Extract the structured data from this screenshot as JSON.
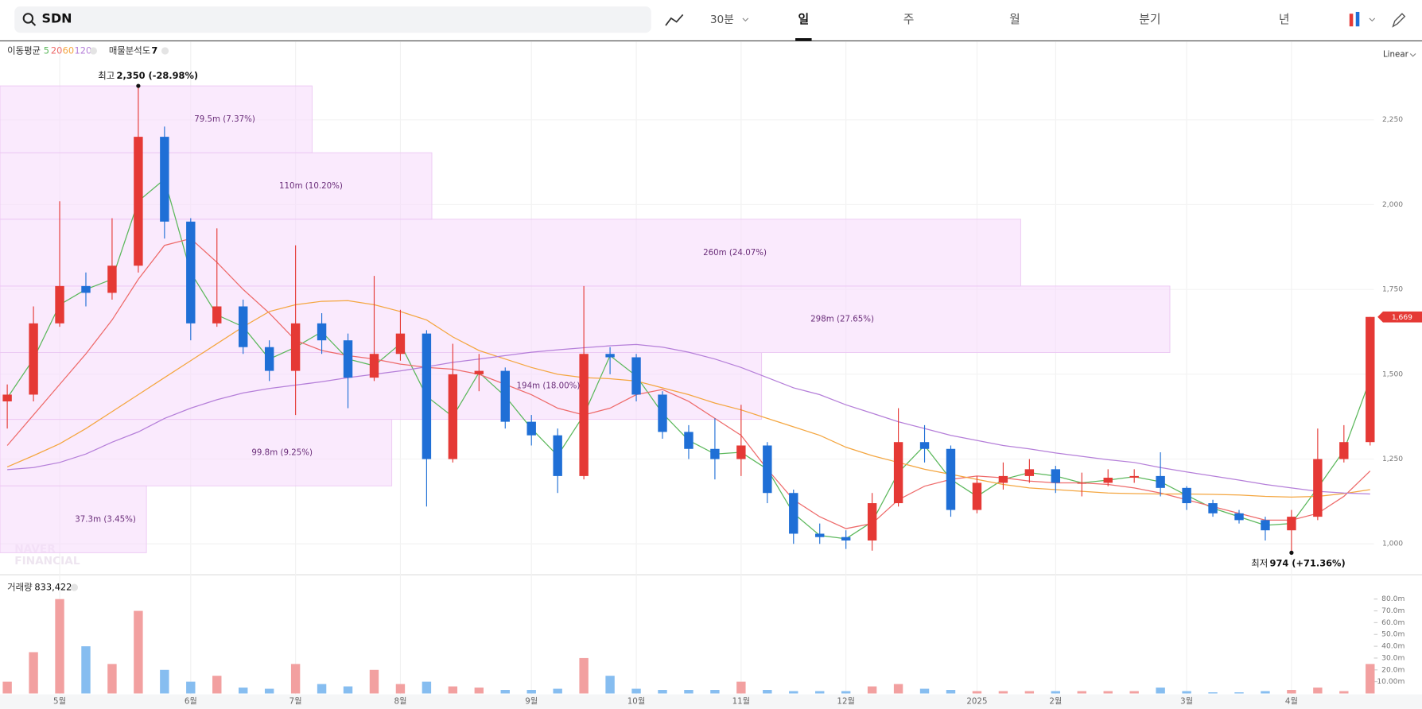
{
  "header": {
    "search": "SDN",
    "interval": "30분",
    "tabs": [
      "일",
      "주",
      "월",
      "분기",
      "년"
    ],
    "active_tab": 0,
    "scale_mode": "Linear"
  },
  "chart_data": {
    "type": "candlestick",
    "categories": [
      null,
      null,
      "5월",
      null,
      null,
      null,
      null,
      "6월",
      null,
      null,
      null,
      "7월",
      null,
      null,
      null,
      "8월",
      null,
      null,
      null,
      null,
      "9월",
      null,
      null,
      null,
      "10월",
      null,
      null,
      null,
      "11월",
      null,
      null,
      null,
      "12월",
      null,
      null,
      null,
      null,
      "2025",
      null,
      null,
      "2월",
      null,
      null,
      null,
      null,
      "3월",
      null,
      null,
      null,
      "4월",
      null,
      null,
      null
    ],
    "ohlc": [
      [
        1420,
        1470,
        1340,
        1440
      ],
      [
        1440,
        1700,
        1420,
        1650
      ],
      [
        1650,
        2010,
        1640,
        1760
      ],
      [
        1760,
        1800,
        1700,
        1740
      ],
      [
        1740,
        1960,
        1720,
        1820
      ],
      [
        1820,
        2350,
        1800,
        2200
      ],
      [
        2200,
        2230,
        1900,
        1950
      ],
      [
        1950,
        1960,
        1600,
        1650
      ],
      [
        1650,
        1930,
        1640,
        1700
      ],
      [
        1700,
        1720,
        1560,
        1580
      ],
      [
        1580,
        1600,
        1480,
        1510
      ],
      [
        1510,
        1880,
        1380,
        1650
      ],
      [
        1650,
        1680,
        1560,
        1600
      ],
      [
        1600,
        1620,
        1400,
        1490
      ],
      [
        1490,
        1790,
        1480,
        1560
      ],
      [
        1560,
        1690,
        1540,
        1620
      ],
      [
        1620,
        1630,
        1110,
        1250
      ],
      [
        1250,
        1590,
        1240,
        1500
      ],
      [
        1500,
        1560,
        1450,
        1510
      ],
      [
        1510,
        1520,
        1340,
        1360
      ],
      [
        1360,
        1380,
        1290,
        1320
      ],
      [
        1320,
        1340,
        1150,
        1200
      ],
      [
        1200,
        1760,
        1190,
        1560
      ],
      [
        1560,
        1580,
        1500,
        1550
      ],
      [
        1550,
        1560,
        1420,
        1440
      ],
      [
        1440,
        1450,
        1310,
        1330
      ],
      [
        1330,
        1350,
        1250,
        1280
      ],
      [
        1280,
        1370,
        1190,
        1250
      ],
      [
        1250,
        1410,
        1200,
        1290
      ],
      [
        1290,
        1300,
        1120,
        1150
      ],
      [
        1150,
        1160,
        1000,
        1030
      ],
      [
        1030,
        1060,
        1000,
        1020
      ],
      [
        1020,
        1040,
        985,
        1010
      ],
      [
        1010,
        1150,
        980,
        1120
      ],
      [
        1120,
        1400,
        1110,
        1300
      ],
      [
        1300,
        1350,
        1240,
        1280
      ],
      [
        1280,
        1290,
        1080,
        1100
      ],
      [
        1100,
        1200,
        1090,
        1180
      ],
      [
        1180,
        1240,
        1160,
        1200
      ],
      [
        1200,
        1250,
        1180,
        1220
      ],
      [
        1220,
        1230,
        1150,
        1180
      ],
      [
        1180,
        1210,
        1140,
        1180
      ],
      [
        1180,
        1220,
        1170,
        1195
      ],
      [
        1195,
        1220,
        1180,
        1200
      ],
      [
        1200,
        1270,
        1140,
        1165
      ],
      [
        1165,
        1170,
        1100,
        1120
      ],
      [
        1120,
        1130,
        1080,
        1090
      ],
      [
        1090,
        1100,
        1060,
        1070
      ],
      [
        1070,
        1080,
        1010,
        1040
      ],
      [
        1040,
        1100,
        974,
        1080
      ],
      [
        1080,
        1340,
        1070,
        1250
      ],
      [
        1250,
        1350,
        1240,
        1300
      ],
      [
        1300,
        1669,
        1290,
        1669
      ]
    ],
    "up_color": "#e53935",
    "down_color": "#1f6fd6",
    "ma_label": "이동평균",
    "series": [
      {
        "name": "5",
        "color": "#5cb85c",
        "values": [
          1430,
          1545,
          1705,
          1750,
          1780,
          2010,
          2075,
          1800,
          1675,
          1640,
          1545,
          1580,
          1625,
          1545,
          1525,
          1590,
          1435,
          1375,
          1505,
          1435,
          1340,
          1260,
          1380,
          1555,
          1495,
          1385,
          1305,
          1265,
          1270,
          1220,
          1090,
          1025,
          1015,
          1065,
          1210,
          1290,
          1190,
          1140,
          1190,
          1210,
          1200,
          1180,
          1188,
          1198,
          1183,
          1143,
          1105,
          1080,
          1055,
          1060,
          1165,
          1275,
          1485
        ]
      },
      {
        "name": "20",
        "color": "#ee6b6b",
        "values": [
          1290,
          1380,
          1470,
          1560,
          1660,
          1780,
          1880,
          1900,
          1830,
          1750,
          1680,
          1600,
          1570,
          1555,
          1545,
          1530,
          1520,
          1515,
          1500,
          1470,
          1440,
          1400,
          1380,
          1400,
          1440,
          1455,
          1420,
          1370,
          1320,
          1220,
          1130,
          1080,
          1045,
          1060,
          1130,
          1170,
          1190,
          1200,
          1195,
          1185,
          1180,
          1180,
          1175,
          1165,
          1150,
          1130,
          1110,
          1090,
          1070,
          1070,
          1090,
          1140,
          1215
        ]
      },
      {
        "name": "60",
        "color": "#f4a640",
        "values": [
          1227,
          1260,
          1295,
          1340,
          1390,
          1440,
          1490,
          1540,
          1590,
          1640,
          1685,
          1705,
          1715,
          1717,
          1705,
          1685,
          1660,
          1610,
          1570,
          1545,
          1520,
          1500,
          1490,
          1487,
          1480,
          1460,
          1440,
          1415,
          1395,
          1370,
          1345,
          1320,
          1285,
          1260,
          1240,
          1220,
          1205,
          1190,
          1175,
          1165,
          1160,
          1155,
          1150,
          1148,
          1147,
          1147,
          1146,
          1144,
          1140,
          1138,
          1140,
          1148,
          1160
        ]
      },
      {
        "name": "120",
        "color": "#b57fd9",
        "values": [
          1219,
          1225,
          1240,
          1265,
          1300,
          1330,
          1370,
          1400,
          1425,
          1445,
          1458,
          1468,
          1478,
          1490,
          1500,
          1510,
          1522,
          1535,
          1545,
          1555,
          1565,
          1572,
          1578,
          1584,
          1588,
          1580,
          1565,
          1545,
          1520,
          1490,
          1460,
          1440,
          1410,
          1385,
          1360,
          1340,
          1320,
          1305,
          1290,
          1280,
          1268,
          1258,
          1248,
          1240,
          1225,
          1212,
          1200,
          1188,
          1175,
          1165,
          1155,
          1150,
          1147
        ]
      }
    ],
    "ylim": [
      909,
      2480
    ],
    "yticks": [
      {
        "value": 1000,
        "label": "1,000"
      },
      {
        "value": 1250,
        "label": "1,250"
      },
      {
        "value": 1500,
        "label": "1,500"
      },
      {
        "value": 1750,
        "label": "1,750"
      },
      {
        "value": 2000,
        "label": "2,000"
      },
      {
        "value": 2250,
        "label": "2,250"
      }
    ],
    "grid": true,
    "volume_profile": {
      "name": "매물분석도",
      "count": 7,
      "color": "#f6dcfb",
      "bands": [
        {
          "low": 974,
          "high": 1171,
          "volume": 37.3,
          "percent": 3.45,
          "label": "37.3m (3.45%)"
        },
        {
          "low": 1171,
          "high": 1367,
          "volume": 99.8,
          "percent": 9.25,
          "label": "99.8m (9.25%)"
        },
        {
          "low": 1367,
          "high": 1564,
          "volume": 194,
          "percent": 18.0,
          "label": "194m (18.00%)"
        },
        {
          "low": 1564,
          "high": 1760,
          "volume": 298,
          "percent": 27.65,
          "label": "298m (27.65%)"
        },
        {
          "low": 1760,
          "high": 1957,
          "volume": 260,
          "percent": 24.07,
          "label": "260m (24.07%)"
        },
        {
          "low": 1957,
          "high": 2153,
          "volume": 110,
          "percent": 10.2,
          "label": "110m (10.20%)"
        },
        {
          "low": 2153,
          "high": 2350,
          "volume": 79.5,
          "percent": 7.37,
          "label": "79.5m (7.37%)"
        }
      ]
    },
    "high_annotation": {
      "label": "최고",
      "text": "2,350 (-28.98%)",
      "index": 5
    },
    "low_annotation": {
      "label": "최저",
      "text": "974 (+71.36%)",
      "index": 49
    },
    "last_price_label": "1,669",
    "watermark": [
      "NAVER",
      "FINANCIAL"
    ],
    "volume": {
      "name": "거래량",
      "current": "833,422",
      "axis": "y2",
      "up_color": "#f2a0a0",
      "down_color": "#86bdf0",
      "values": [
        10,
        35,
        80,
        40,
        25,
        70,
        20,
        10,
        15,
        5,
        4,
        25,
        8,
        6,
        20,
        8,
        10,
        6,
        5,
        3,
        3,
        4,
        30,
        15,
        4,
        3,
        3,
        3,
        10,
        3,
        2,
        2,
        2,
        6,
        8,
        4,
        3,
        2,
        2,
        2,
        2,
        2,
        2,
        2,
        5,
        2,
        1,
        1,
        2,
        3,
        5,
        2,
        25
      ]
    },
    "y2lim": [
      0,
      96
    ],
    "y2ticks": [
      {
        "value": 10,
        "label": "10.00m"
      },
      {
        "value": 20,
        "label": "20.0m"
      },
      {
        "value": 30,
        "label": "30.0m"
      },
      {
        "value": 40,
        "label": "40.0m"
      },
      {
        "value": 50,
        "label": "50.0m"
      },
      {
        "value": 60,
        "label": "60.0m"
      },
      {
        "value": 70,
        "label": "70.0m"
      },
      {
        "value": 80,
        "label": "80.0m"
      }
    ]
  }
}
